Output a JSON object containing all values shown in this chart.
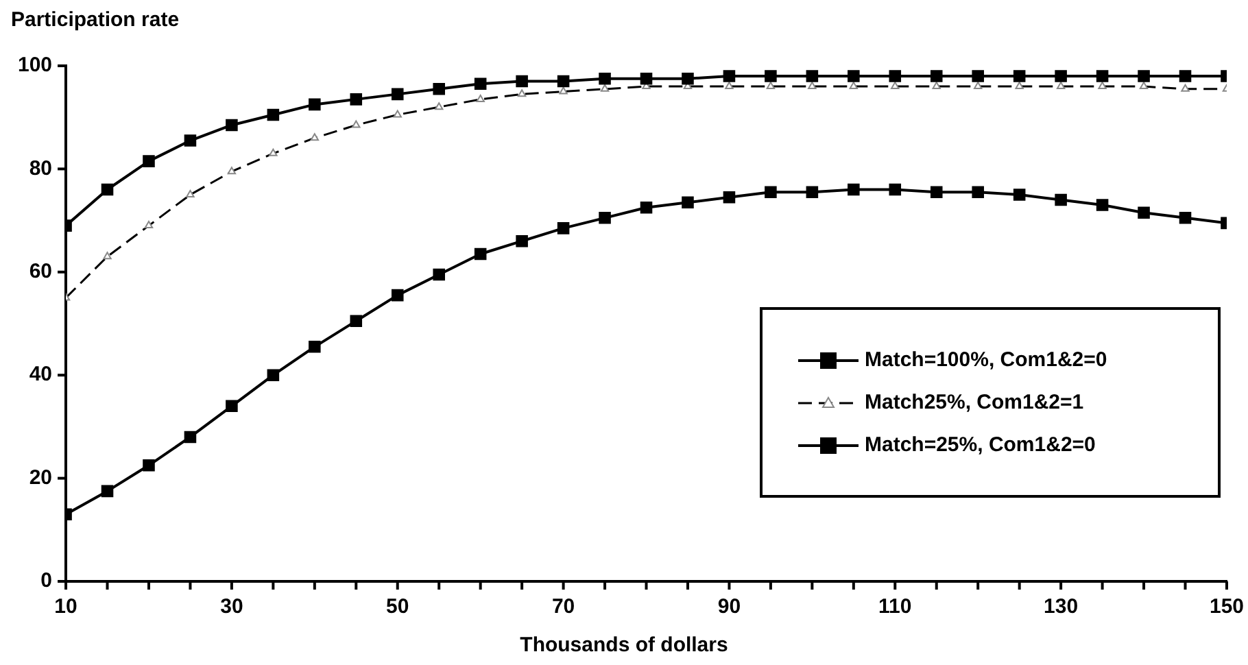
{
  "chart_data": {
    "type": "line",
    "ylabel": "Participation rate",
    "xlabel": "Thousands of dollars",
    "x": [
      10,
      15,
      20,
      25,
      30,
      35,
      40,
      45,
      50,
      55,
      60,
      65,
      70,
      75,
      80,
      85,
      90,
      95,
      100,
      105,
      110,
      115,
      120,
      125,
      130,
      135,
      140,
      145,
      150
    ],
    "series": [
      {
        "name": "Match=100%, Com1&2=0",
        "color": "#000000",
        "marker": "square",
        "line_style": "solid",
        "values": [
          69,
          76,
          81.5,
          85.5,
          88.5,
          90.5,
          92.5,
          93.5,
          94.5,
          95.5,
          96.5,
          97,
          97,
          97.5,
          97.5,
          97.5,
          98,
          98,
          98,
          98,
          98,
          98,
          98,
          98,
          98,
          98,
          98,
          98,
          98
        ]
      },
      {
        "name": "Match25%, Com1&2=1",
        "color": "#000000",
        "marker": "triangle",
        "line_style": "dashed",
        "values": [
          55,
          63,
          69,
          75,
          79.5,
          83,
          86,
          88.5,
          90.5,
          92,
          93.5,
          94.5,
          95,
          95.5,
          96,
          96,
          96,
          96,
          96,
          96,
          96,
          96,
          96,
          96,
          96,
          96,
          96,
          95.5,
          95.5
        ]
      },
      {
        "name": "Match=25%, Com1&2=0",
        "color": "#000000",
        "marker": "square",
        "line_style": "solid",
        "values": [
          13,
          17.5,
          22.5,
          28,
          34,
          40,
          45.5,
          50.5,
          55.5,
          59.5,
          63.5,
          66,
          68.5,
          70.5,
          72.5,
          73.5,
          74.5,
          75.5,
          75.5,
          76,
          76,
          75.5,
          75.5,
          75,
          74,
          73,
          71.5,
          70.5,
          69.5
        ]
      }
    ],
    "xlim": [
      10,
      150
    ],
    "xticks": [
      10,
      {
        "value": 15,
        "label": null
      },
      {
        "value": 20,
        "label": null
      },
      {
        "value": 25,
        "label": null
      },
      30,
      {
        "value": 35,
        "label": null
      },
      {
        "value": 40,
        "label": null
      },
      {
        "value": 45,
        "label": null
      },
      50,
      {
        "value": 55,
        "label": null
      },
      {
        "value": 60,
        "label": null
      },
      {
        "value": 65,
        "label": null
      },
      70,
      {
        "value": 75,
        "label": null
      },
      {
        "value": 80,
        "label": null
      },
      {
        "value": 85,
        "label": null
      },
      90,
      {
        "value": 95,
        "label": null
      },
      {
        "value": 100,
        "label": null
      },
      {
        "value": 105,
        "label": null
      },
      110,
      {
        "value": 115,
        "label": null
      },
      {
        "value": 120,
        "label": null
      },
      {
        "value": 125,
        "label": null
      },
      130,
      {
        "value": 135,
        "label": null
      },
      {
        "value": 140,
        "label": null
      },
      {
        "value": 145,
        "label": null
      },
      150
    ],
    "ylim": [
      0,
      100
    ],
    "yticks": [
      0,
      20,
      40,
      60,
      80,
      100
    ],
    "grid": false,
    "legend": "bottom right"
  }
}
